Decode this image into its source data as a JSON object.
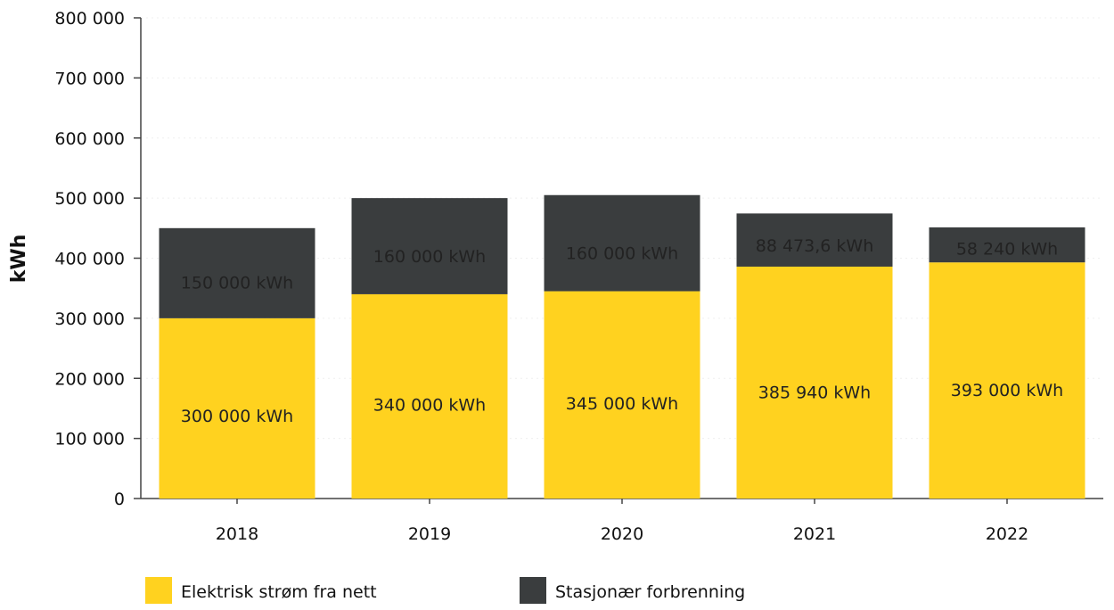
{
  "chart_data": {
    "type": "bar",
    "stacked": true,
    "title": "",
    "xlabel": "",
    "ylabel": "kWh",
    "ylim": [
      0,
      800000
    ],
    "yticks": [
      0,
      100000,
      200000,
      300000,
      400000,
      500000,
      600000,
      700000,
      800000
    ],
    "ytick_labels": [
      "0",
      "100 000",
      "200 000",
      "300 000",
      "400 000",
      "500 000",
      "600 000",
      "700 000",
      "800 000"
    ],
    "grid": true,
    "legend_position": "bottom",
    "categories": [
      "2018",
      "2019",
      "2020",
      "2021",
      "2022"
    ],
    "series": [
      {
        "name": "Elektrisk strøm fra nett",
        "color": "#FFD21F",
        "values": [
          300000,
          340000,
          345000,
          385940,
          393000
        ],
        "labels": [
          "300 000 kWh",
          "340 000 kWh",
          "345 000 kWh",
          "385 940 kWh",
          "393 000 kWh"
        ]
      },
      {
        "name": "Stasjonær forbrenning",
        "color": "#3A3D3E",
        "values": [
          150000,
          160000,
          160000,
          88473.6,
          58240
        ],
        "labels": [
          "150 000 kWh",
          "160 000 kWh",
          "160 000 kWh",
          "88 473,6 kWh",
          "58 240 kWh"
        ]
      }
    ]
  }
}
